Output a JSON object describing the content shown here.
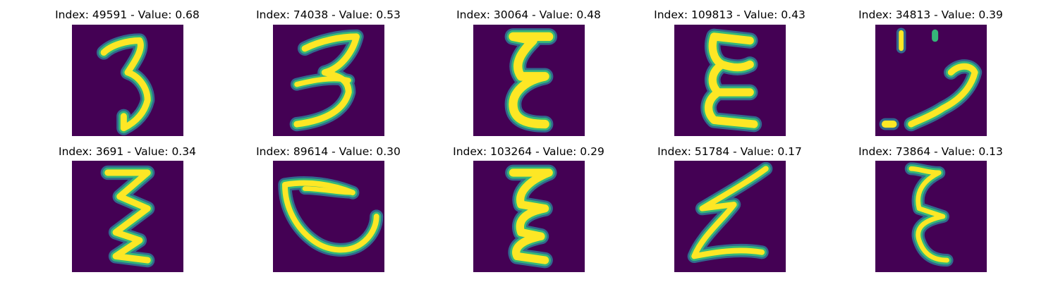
{
  "panels": [
    {
      "index": "49591",
      "value": "0.68",
      "title": "Index: 49591 - Value: 0.68",
      "glyph": "three-narrow"
    },
    {
      "index": "74038",
      "value": "0.53",
      "title": "Index: 74038 - Value: 0.53",
      "glyph": "three-wide"
    },
    {
      "index": "30064",
      "value": "0.48",
      "title": "Index: 30064 - Value: 0.48",
      "glyph": "epsilon-bold"
    },
    {
      "index": "109813",
      "value": "0.43",
      "title": "Index: 109813 - Value: 0.43",
      "glyph": "epsilon-round"
    },
    {
      "index": "34813",
      "value": "0.39",
      "title": "Index: 34813 - Value: 0.39",
      "glyph": "broken-stroke"
    },
    {
      "index": "3691",
      "value": "0.34",
      "title": "Index: 3691 - Value: 0.34",
      "glyph": "zigzag-epsilon"
    },
    {
      "index": "89614",
      "value": "0.30",
      "title": "Index: 89614 - Value: 0.30",
      "glyph": "bowl-shape"
    },
    {
      "index": "103264",
      "value": "0.29",
      "title": "Index: 103264 - Value: 0.29",
      "glyph": "epsilon-tall"
    },
    {
      "index": "51784",
      "value": "0.17",
      "title": "Index: 51784 - Value: 0.17",
      "glyph": "slanted-z"
    },
    {
      "index": "73864",
      "value": "0.13",
      "title": "Index: 73864 - Value: 0.13",
      "glyph": "epsilon-thin"
    }
  ],
  "colors": {
    "background": "#440154",
    "stroke_core": "#fde725",
    "stroke_edge": "#35b779",
    "stroke_halo": "#31688e"
  }
}
